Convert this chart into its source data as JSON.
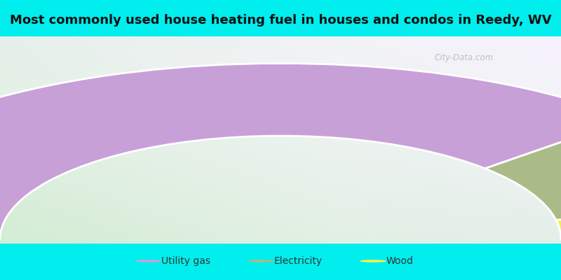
{
  "title": "Most commonly used house heating fuel in houses and condos in Reedy, WV",
  "title_fontsize": 13,
  "background_color": "#00EEEE",
  "segments": [
    {
      "label": "Utility gas",
      "value": 76,
      "color": "#C8A0D8"
    },
    {
      "label": "Electricity",
      "value": 18,
      "color": "#AABB88"
    },
    {
      "label": "Wood",
      "value": 6,
      "color": "#F5F050"
    }
  ],
  "legend_colors": [
    "#C8A0D8",
    "#AABB88",
    "#F5F050"
  ],
  "legend_labels": [
    "Utility gas",
    "Electricity",
    "Wood"
  ],
  "watermark": "City-Data.com"
}
